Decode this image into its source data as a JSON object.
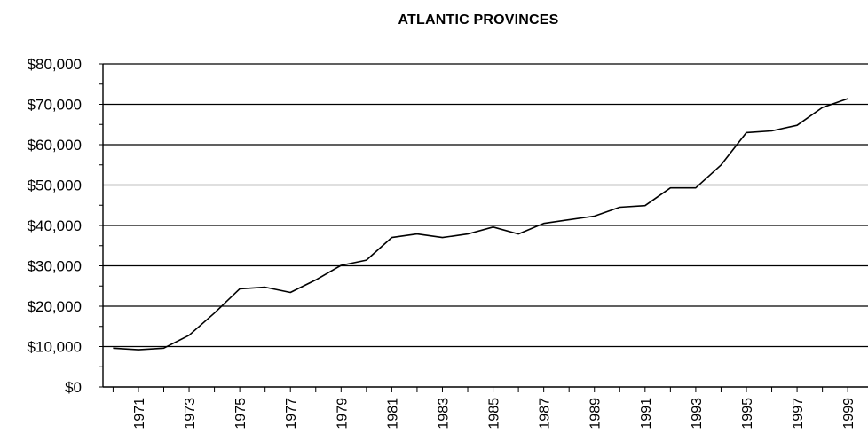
{
  "chart_data": {
    "type": "line",
    "title": "ATLANTIC PROVINCES",
    "xlabel": "",
    "ylabel": "",
    "y_tick_labels": [
      "$0",
      "$10,000",
      "$20,000",
      "$30,000",
      "$40,000",
      "$50,000",
      "$60,000",
      "$70,000",
      "$80,000"
    ],
    "y_ticks": [
      0,
      10000,
      20000,
      30000,
      40000,
      50000,
      60000,
      70000,
      80000
    ],
    "x_tick_labels": [
      "1971",
      "1973",
      "1975",
      "1977",
      "1979",
      "1981",
      "1983",
      "1985",
      "1987",
      "1989",
      "1991",
      "1993",
      "1995",
      "1997",
      "1999"
    ],
    "ylim": [
      0,
      80000
    ],
    "grid": "horizontal",
    "series": [
      {
        "x": [
          1970,
          1971,
          1972,
          1973,
          1974,
          1975,
          1976,
          1977,
          1978,
          1979,
          1980,
          1981,
          1982,
          1983,
          1984,
          1985,
          1986,
          1987,
          1988,
          1989,
          1990,
          1991,
          1992,
          1993,
          1994,
          1995,
          1996,
          1997,
          1998,
          1999
        ],
        "values": [
          9600,
          9200,
          9600,
          12800,
          18300,
          24300,
          24700,
          23400,
          26500,
          30100,
          31400,
          37000,
          37900,
          37000,
          37900,
          39600,
          37900,
          40500,
          41400,
          42300,
          44500,
          44900,
          49300,
          49300,
          55000,
          63000,
          63400,
          64800,
          69200,
          71400
        ]
      }
    ]
  }
}
